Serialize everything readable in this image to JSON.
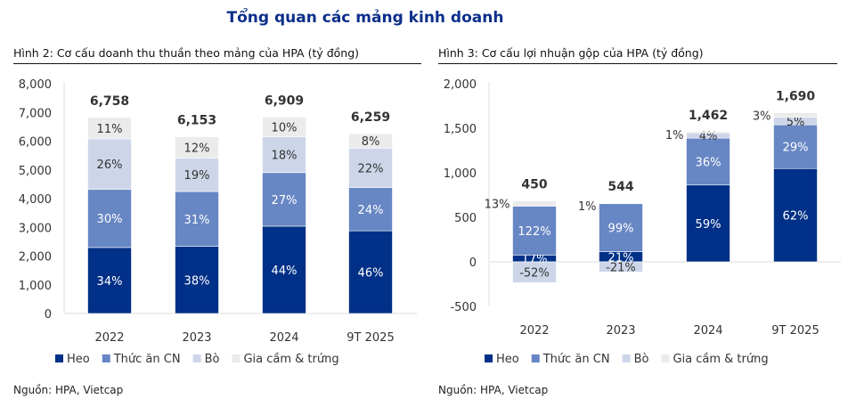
{
  "header": {
    "title": "Tổng quan các mảng kinh doanh"
  },
  "colors": {
    "Heo": "#003087",
    "Thức ăn CN": "#6786c4",
    "Bò": "#cdd6e9",
    "Gia cầm & trứng": "#ebebeb"
  },
  "chart_data": [
    {
      "type": "bar",
      "stacked": true,
      "title": "Hình 2: Cơ cấu doanh thu thuần theo mảng của HPA (tỷ đồng)",
      "source": "Nguồn: HPA, Vietcap",
      "categories": [
        "2022",
        "2023",
        "2024",
        "9T 2025"
      ],
      "totals": [
        6758,
        6153,
        6909,
        6259
      ],
      "total_labels": [
        "6,758",
        "6,153",
        "6,909",
        "6,259"
      ],
      "ylim": [
        0,
        8000
      ],
      "yticks": [
        0,
        1000,
        2000,
        3000,
        4000,
        5000,
        6000,
        7000,
        8000
      ],
      "ytick_labels": [
        "0",
        "1,000",
        "2,000",
        "3,000",
        "4,000",
        "5,000",
        "6,000",
        "7,000",
        "8,000"
      ],
      "legend_position": "bottom",
      "series": [
        {
          "name": "Heo",
          "share_pct": [
            34,
            38,
            44,
            46
          ]
        },
        {
          "name": "Thức ăn CN",
          "share_pct": [
            30,
            31,
            27,
            24
          ]
        },
        {
          "name": "Bò",
          "share_pct": [
            26,
            19,
            18,
            22
          ]
        },
        {
          "name": "Gia cầm & trứng",
          "share_pct": [
            11,
            12,
            10,
            8
          ]
        }
      ]
    },
    {
      "type": "bar",
      "stacked": true,
      "title": "Hình 3: Cơ cấu lợi nhuận gộp của HPA (tỷ đồng)",
      "source": "Nguồn: HPA, Vietcap",
      "categories": [
        "2022",
        "2023",
        "2024",
        "9T 2025"
      ],
      "totals": [
        450,
        544,
        1462,
        1690
      ],
      "total_labels": [
        "450",
        "544",
        "1,462",
        "1,690"
      ],
      "ylim": [
        -500,
        2000
      ],
      "yticks": [
        -500,
        0,
        500,
        1000,
        1500,
        2000
      ],
      "ytick_labels": [
        "-500",
        "0",
        "500",
        "1,000",
        "1,500",
        "2,000"
      ],
      "legend_position": "bottom",
      "series": [
        {
          "name": "Heo",
          "share_pct": [
            17,
            21,
            59,
            62
          ]
        },
        {
          "name": "Thức ăn CN",
          "share_pct": [
            122,
            99,
            36,
            29
          ]
        },
        {
          "name": "Bò",
          "share_pct": [
            -52,
            -21,
            4,
            5
          ]
        },
        {
          "name": "Gia cầm & trứng",
          "share_pct": [
            13,
            1,
            1,
            3
          ]
        }
      ]
    }
  ]
}
